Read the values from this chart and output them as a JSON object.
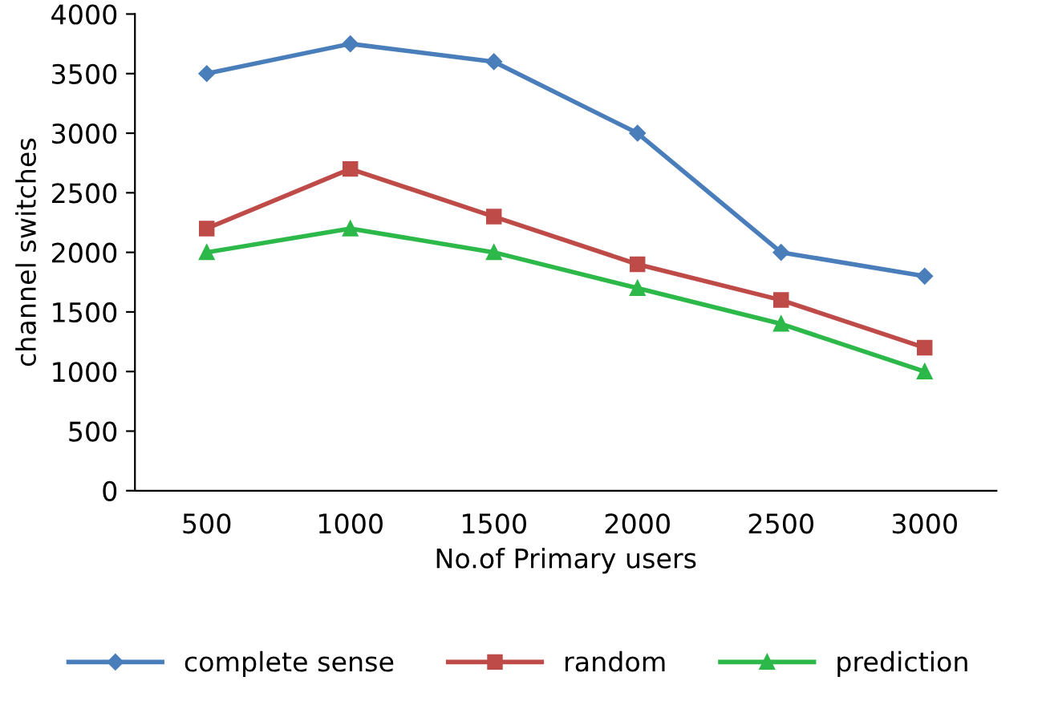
{
  "chart_data": {
    "type": "line",
    "xlabel": "No.of Primary users",
    "ylabel": "channel switches",
    "categories": [
      "500",
      "1000",
      "1500",
      "2000",
      "2500",
      "3000"
    ],
    "series": [
      {
        "name": "complete sense",
        "color": "#4a7ebb",
        "marker": "diamond",
        "values": [
          3500,
          3750,
          3600,
          3000,
          2000,
          1800
        ]
      },
      {
        "name": "random",
        "color": "#be4b48",
        "marker": "square",
        "values": [
          2200,
          2700,
          2300,
          1900,
          1600,
          1200
        ]
      },
      {
        "name": "prediction",
        "color": "#2db84a",
        "marker": "triangle",
        "values": [
          2000,
          2200,
          2000,
          1700,
          1400,
          1000
        ]
      }
    ],
    "ylim": [
      0,
      4000
    ],
    "yticks": [
      0,
      500,
      1000,
      1500,
      2000,
      2500,
      3000,
      3500,
      4000
    ],
    "grid": false,
    "legend": "bottom",
    "line_style": "solid"
  }
}
